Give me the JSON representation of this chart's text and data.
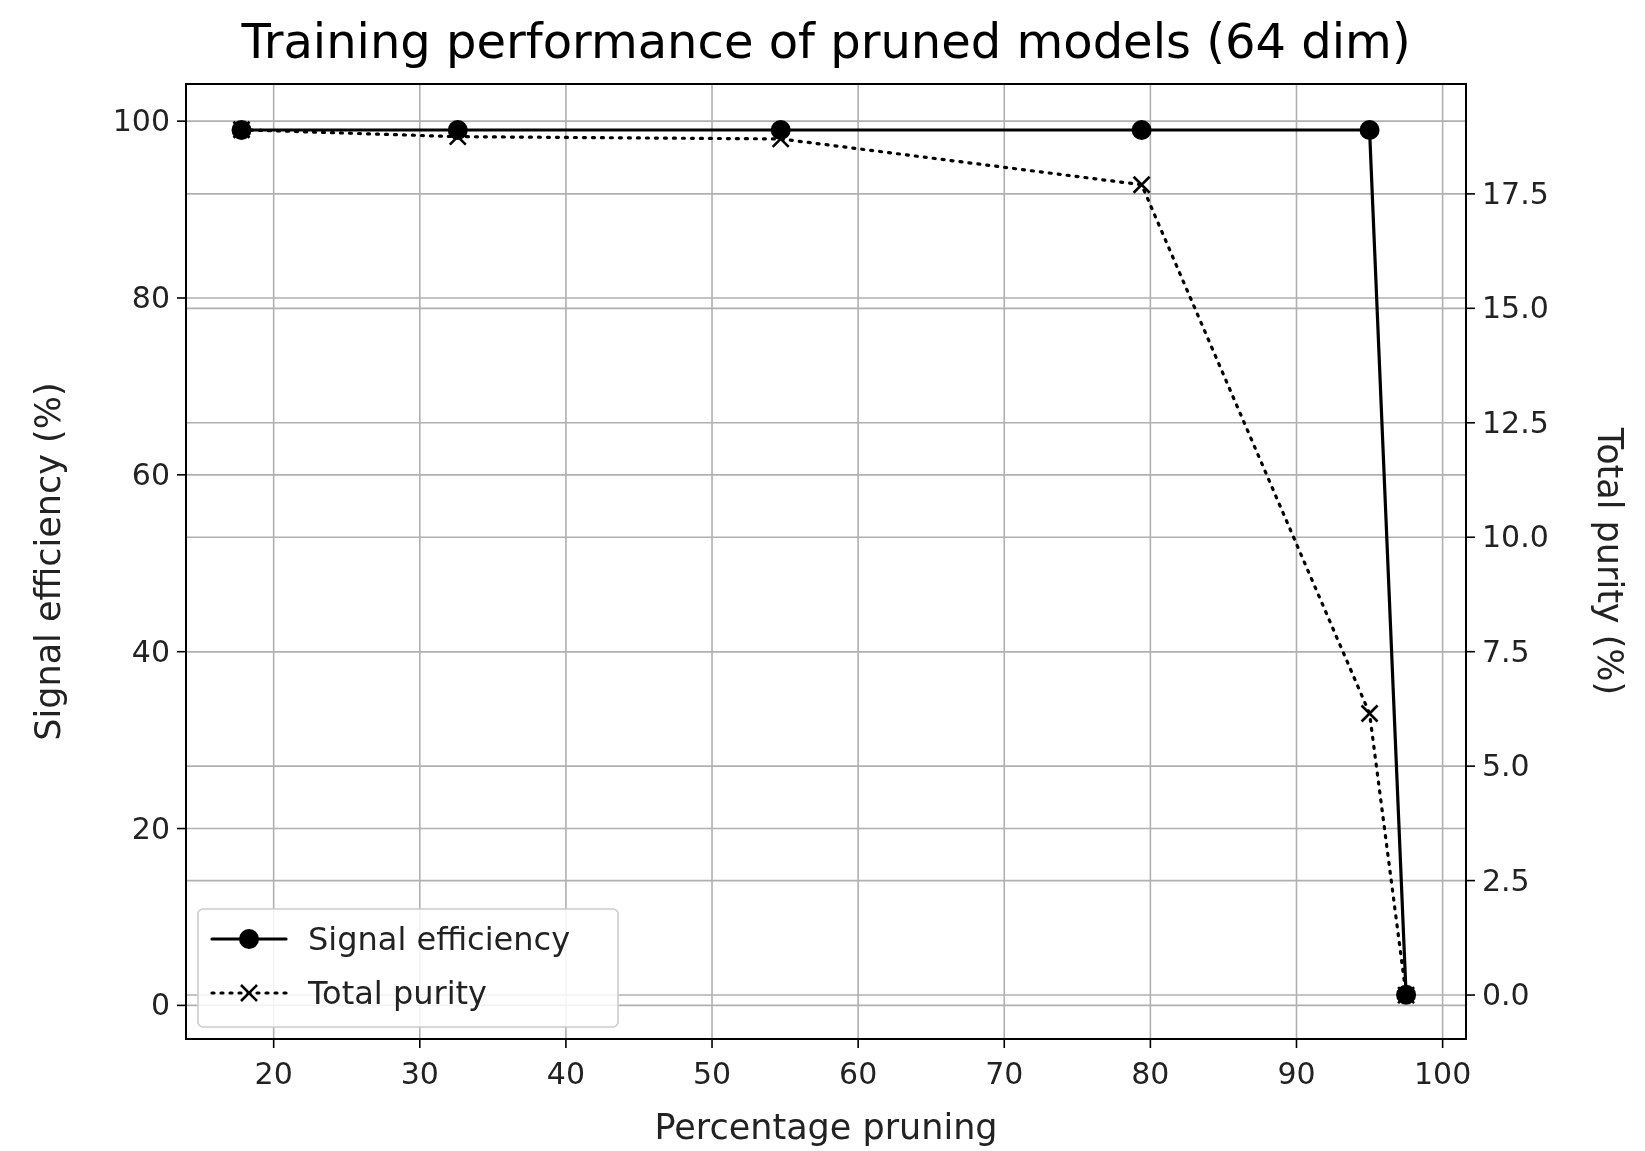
{
  "chart_data": {
    "type": "line",
    "title": "Training performance of pruned models (64 dim)",
    "xlabel": "Percentage pruning",
    "ylabel": "Signal efficiency (%)",
    "y2label": "Total purity (%)",
    "x": [
      17.8,
      32.6,
      54.7,
      79.4,
      95.0,
      97.5
    ],
    "series": [
      {
        "name": "Signal efficiency",
        "color": "#000000",
        "values": [
          99,
          99,
          99,
          99,
          99,
          1.2
        ],
        "marker": "circle",
        "line_style": "solid"
      },
      {
        "name": "Total purity",
        "color": "#000000",
        "values": [
          18.9,
          18.75,
          18.7,
          17.7,
          6.15,
          0.0
        ],
        "marker": "cross",
        "line_style": "dotted",
        "axis": "y2"
      }
    ],
    "xlim": [
      14,
      101.6
    ],
    "xticks": [
      20,
      30,
      40,
      50,
      60,
      70,
      80,
      90,
      100
    ],
    "ylim": [
      -3.8,
      104.2
    ],
    "yticks": [
      0,
      20,
      40,
      60,
      80,
      100
    ],
    "y2lim": [
      -0.96,
      19.9
    ],
    "y2ticks": [
      {
        "value": 0,
        "label": "0.0"
      },
      {
        "value": 2.5,
        "label": "2.5"
      },
      {
        "value": 5,
        "label": "5.0"
      },
      {
        "value": 7.5,
        "label": "7.5"
      },
      {
        "value": 10,
        "label": "10.0"
      },
      {
        "value": 12.5,
        "label": "12.5"
      },
      {
        "value": 15,
        "label": "15.0"
      },
      {
        "value": 17.5,
        "label": "17.5"
      }
    ],
    "grid": true,
    "legend": "bottom left"
  }
}
